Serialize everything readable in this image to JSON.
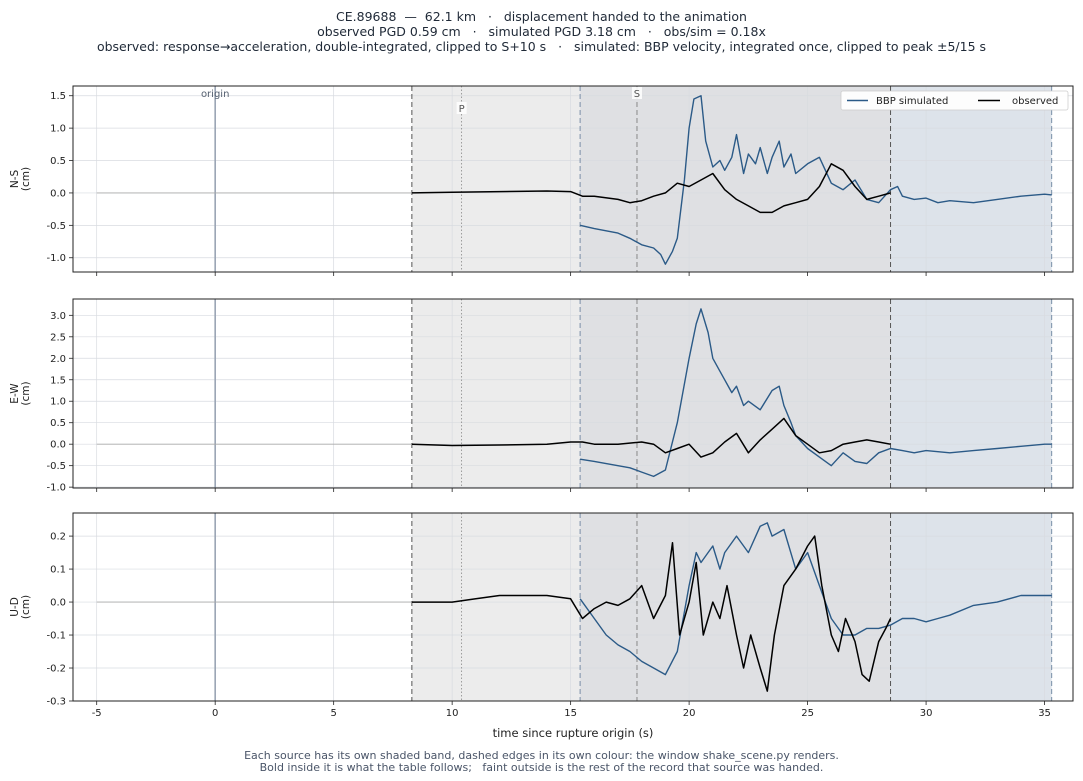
{
  "title": {
    "line1": "CE.89688  —  62.1 km   ·   displacement handed to the animation",
    "line2": "observed PGD 0.59 cm   ·   simulated PGD 3.18 cm   ·   obs/sim = 0.18x",
    "line3": "observed: response→acceleration, double-integrated, clipped to S+10 s   ·   simulated: BBP velocity, integrated once, clipped to peak ±5/15 s"
  },
  "footer": {
    "line1": "Each source has its own shaded band, dashed edges in its own colour: the window shake_scene.py renders.",
    "line2": "Bold inside it is what the table follows;   faint outside is the rest of the record that source was handed."
  },
  "colors": {
    "simulated": "#2b5a87",
    "observed": "#000000",
    "origin_line": "#9aa5b4",
    "obs_band": "#ececec",
    "sim_band": "#dde3ea",
    "overlap_band": "#dfe0e3",
    "obs_edge": "#555555",
    "sim_edge": "#7a8fa8",
    "phase_line": "#888888"
  },
  "chart_data": {
    "type": "line",
    "xlabel": "time since rupture origin (s)",
    "xlim": [
      -6,
      36.2
    ],
    "xticks": [
      -5,
      0,
      5,
      10,
      15,
      20,
      25,
      30,
      35
    ],
    "legend": {
      "position": "top-right",
      "entries": [
        "BBP simulated",
        "observed"
      ]
    },
    "grid": true,
    "markers": {
      "origin": {
        "x": 0,
        "label": "origin"
      },
      "P": {
        "x": 10.4,
        "label": "P"
      },
      "S": {
        "x": 17.8,
        "label": "S"
      }
    },
    "windows": {
      "observed": [
        8.3,
        28.5
      ],
      "simulated": [
        15.4,
        35.3
      ]
    },
    "panels": [
      {
        "ylabel": "N-S",
        "yunit": "(cm)",
        "ylim": [
          -1.22,
          1.65
        ],
        "yticks": [
          -1.0,
          -0.5,
          0.0,
          0.5,
          1.0,
          1.5
        ],
        "series": [
          {
            "name": "BBP simulated",
            "key": "sim",
            "x": [
              15.4,
              16.0,
              17.0,
              17.5,
              18.0,
              18.5,
              18.8,
              19.0,
              19.3,
              19.5,
              19.8,
              20.0,
              20.2,
              20.5,
              20.7,
              21.0,
              21.3,
              21.5,
              21.8,
              22.0,
              22.3,
              22.5,
              22.8,
              23.0,
              23.3,
              23.5,
              23.8,
              24.0,
              24.3,
              24.5,
              25.0,
              25.5,
              26.0,
              26.5,
              27.0,
              27.5,
              28.0,
              28.5,
              28.8,
              29.0,
              29.5,
              30.0,
              30.5,
              31.0,
              32.0,
              33.0,
              34.0,
              35.0,
              35.3
            ],
            "y": [
              -0.5,
              -0.55,
              -0.62,
              -0.7,
              -0.8,
              -0.85,
              -0.95,
              -1.1,
              -0.9,
              -0.7,
              0.2,
              1.0,
              1.45,
              1.5,
              0.8,
              0.4,
              0.5,
              0.35,
              0.55,
              0.9,
              0.3,
              0.6,
              0.45,
              0.7,
              0.3,
              0.55,
              0.8,
              0.4,
              0.6,
              0.3,
              0.45,
              0.55,
              0.15,
              0.05,
              0.2,
              -0.1,
              -0.15,
              0.05,
              0.1,
              -0.05,
              -0.1,
              -0.08,
              -0.15,
              -0.12,
              -0.15,
              -0.1,
              -0.05,
              -0.02,
              -0.03
            ]
          },
          {
            "name": "observed",
            "key": "obs",
            "x": [
              8.3,
              10.0,
              12.0,
              14.0,
              15.0,
              15.5,
              16.0,
              17.0,
              17.5,
              18.0,
              18.5,
              19.0,
              19.5,
              20.0,
              20.5,
              21.0,
              21.5,
              22.0,
              22.5,
              23.0,
              23.5,
              24.0,
              24.5,
              25.0,
              25.5,
              26.0,
              26.5,
              27.0,
              27.5,
              28.0,
              28.5
            ],
            "y": [
              0.0,
              0.01,
              0.02,
              0.03,
              0.02,
              -0.05,
              -0.05,
              -0.1,
              -0.15,
              -0.12,
              -0.05,
              0.0,
              0.15,
              0.1,
              0.2,
              0.3,
              0.05,
              -0.1,
              -0.2,
              -0.3,
              -0.3,
              -0.2,
              -0.15,
              -0.1,
              0.1,
              0.45,
              0.35,
              0.1,
              -0.1,
              -0.05,
              0.0
            ]
          }
        ]
      },
      {
        "ylabel": "E-W",
        "yunit": "(cm)",
        "ylim": [
          -1.02,
          3.38
        ],
        "yticks": [
          -1.0,
          -0.5,
          0.0,
          0.5,
          1.0,
          1.5,
          2.0,
          2.5,
          3.0
        ],
        "series": [
          {
            "name": "BBP simulated",
            "key": "sim",
            "x": [
              15.4,
              16.0,
              17.0,
              17.5,
              18.0,
              18.5,
              19.0,
              19.5,
              20.0,
              20.3,
              20.5,
              20.8,
              21.0,
              21.3,
              21.5,
              21.8,
              22.0,
              22.3,
              22.5,
              23.0,
              23.5,
              23.8,
              24.0,
              24.3,
              24.5,
              25.0,
              25.5,
              26.0,
              26.5,
              27.0,
              27.5,
              28.0,
              28.5,
              29.0,
              29.5,
              30.0,
              31.0,
              32.0,
              33.0,
              34.0,
              35.0,
              35.3
            ],
            "y": [
              -0.35,
              -0.4,
              -0.5,
              -0.55,
              -0.65,
              -0.75,
              -0.6,
              0.5,
              2.0,
              2.8,
              3.15,
              2.6,
              2.0,
              1.7,
              1.5,
              1.2,
              1.35,
              0.9,
              1.0,
              0.8,
              1.25,
              1.35,
              0.9,
              0.5,
              0.2,
              -0.1,
              -0.3,
              -0.5,
              -0.2,
              -0.4,
              -0.45,
              -0.2,
              -0.1,
              -0.15,
              -0.2,
              -0.15,
              -0.2,
              -0.15,
              -0.1,
              -0.05,
              0.0,
              0.0
            ]
          },
          {
            "name": "observed",
            "key": "obs",
            "x": [
              8.3,
              10.0,
              12.0,
              14.0,
              15.0,
              15.5,
              16.0,
              17.0,
              18.0,
              18.5,
              19.0,
              19.5,
              20.0,
              20.5,
              21.0,
              21.5,
              22.0,
              22.5,
              23.0,
              23.5,
              24.0,
              24.5,
              25.0,
              25.5,
              26.0,
              26.5,
              27.0,
              27.5,
              28.0,
              28.5
            ],
            "y": [
              0.0,
              -0.03,
              -0.02,
              0.0,
              0.05,
              0.05,
              0.0,
              0.0,
              0.05,
              0.0,
              -0.2,
              -0.1,
              0.0,
              -0.3,
              -0.2,
              0.05,
              0.25,
              -0.2,
              0.1,
              0.35,
              0.6,
              0.2,
              0.0,
              -0.2,
              -0.15,
              0.0,
              0.05,
              0.1,
              0.05,
              0.0
            ]
          }
        ]
      },
      {
        "ylabel": "U-D",
        "yunit": "(cm)",
        "ylim": [
          -0.3,
          0.27
        ],
        "yticks": [
          -0.3,
          -0.2,
          -0.1,
          0.0,
          0.1,
          0.2
        ],
        "series": [
          {
            "name": "BBP simulated",
            "key": "sim",
            "x": [
              15.4,
              16.0,
              16.5,
              17.0,
              17.5,
              18.0,
              18.5,
              19.0,
              19.5,
              20.0,
              20.3,
              20.5,
              21.0,
              21.3,
              21.5,
              22.0,
              22.5,
              23.0,
              23.3,
              23.5,
              24.0,
              24.5,
              25.0,
              25.5,
              26.0,
              26.5,
              27.0,
              27.5,
              28.0,
              28.5,
              29.0,
              29.5,
              30.0,
              30.5,
              31.0,
              32.0,
              33.0,
              34.0,
              35.0,
              35.3
            ],
            "y": [
              0.01,
              -0.05,
              -0.1,
              -0.13,
              -0.15,
              -0.18,
              -0.2,
              -0.22,
              -0.15,
              0.05,
              0.15,
              0.12,
              0.17,
              0.1,
              0.15,
              0.2,
              0.15,
              0.23,
              0.24,
              0.2,
              0.22,
              0.1,
              0.15,
              0.05,
              -0.05,
              -0.1,
              -0.1,
              -0.08,
              -0.08,
              -0.07,
              -0.05,
              -0.05,
              -0.06,
              -0.05,
              -0.04,
              -0.01,
              0.0,
              0.02,
              0.02,
              0.02
            ]
          },
          {
            "name": "observed",
            "key": "obs",
            "x": [
              8.3,
              10.0,
              11.0,
              12.0,
              13.0,
              14.0,
              15.0,
              15.5,
              16.0,
              16.5,
              17.0,
              17.5,
              18.0,
              18.5,
              19.0,
              19.3,
              19.6,
              20.0,
              20.3,
              20.6,
              21.0,
              21.3,
              21.6,
              22.0,
              22.3,
              22.6,
              23.0,
              23.3,
              23.6,
              24.0,
              24.5,
              25.0,
              25.3,
              25.6,
              26.0,
              26.3,
              26.6,
              27.0,
              27.3,
              27.6,
              28.0,
              28.3,
              28.5
            ],
            "y": [
              0.0,
              0.0,
              0.01,
              0.02,
              0.02,
              0.02,
              0.01,
              -0.05,
              -0.02,
              0.0,
              -0.01,
              0.01,
              0.05,
              -0.05,
              0.02,
              0.18,
              -0.1,
              0.0,
              0.12,
              -0.1,
              0.0,
              -0.05,
              0.05,
              -0.1,
              -0.2,
              -0.1,
              -0.2,
              -0.27,
              -0.1,
              0.05,
              0.1,
              0.17,
              0.2,
              0.05,
              -0.1,
              -0.15,
              -0.05,
              -0.12,
              -0.22,
              -0.24,
              -0.12,
              -0.08,
              -0.05
            ]
          }
        ]
      }
    ]
  }
}
